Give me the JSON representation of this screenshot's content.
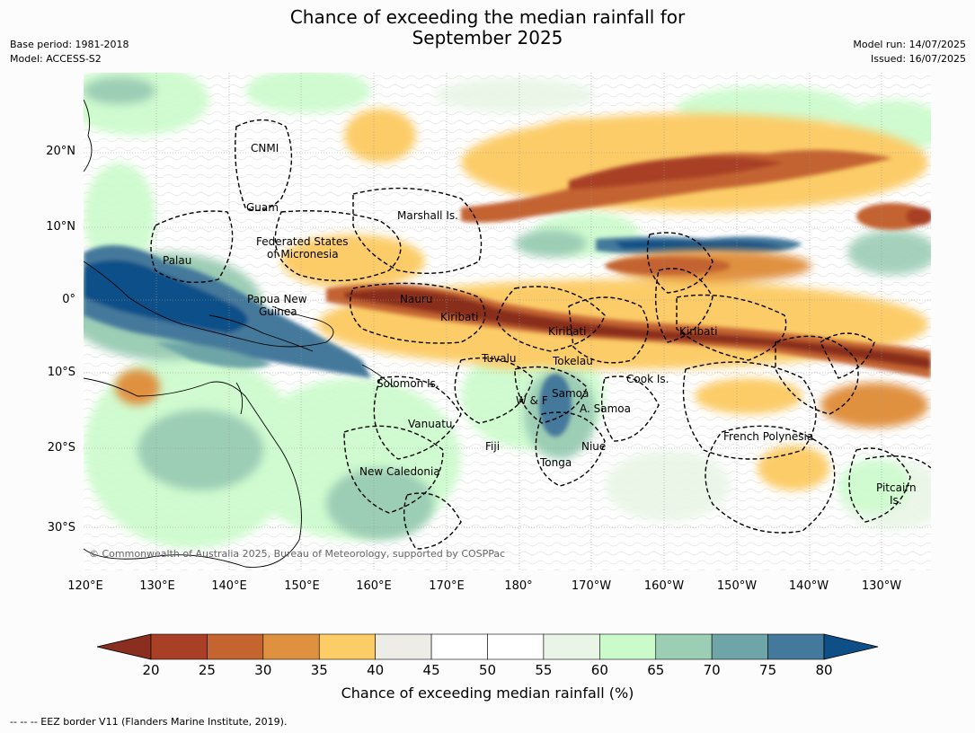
{
  "title_lines": [
    "Chance of exceeding the median rainfall for",
    "September 2025"
  ],
  "meta_left": {
    "line1": "Base period: 1981-2018",
    "line2": "Model: ACCESS-S2"
  },
  "meta_right": {
    "line1": "Model run: 14/07/2025",
    "line2": "Issued: 16/07/2025"
  },
  "lat_labels": [
    "20°N",
    "10°N",
    "0°",
    "10°S",
    "20°S",
    "30°S"
  ],
  "lon_labels": [
    "120°E",
    "130°E",
    "140°E",
    "150°E",
    "160°E",
    "170°E",
    "180°",
    "170°W",
    "160°W",
    "150°W",
    "140°W",
    "130°W"
  ],
  "places": [
    {
      "name": "CNMI"
    },
    {
      "name": "Guam"
    },
    {
      "name": "Marshall Is."
    },
    {
      "name": "Federated States"
    },
    {
      "name": "of Micronesia"
    },
    {
      "name": "Palau"
    },
    {
      "name": "Papua New"
    },
    {
      "name": "Guinea"
    },
    {
      "name": "Nauru"
    },
    {
      "name": "Kiribati"
    },
    {
      "name": "Kiribati"
    },
    {
      "name": "Kiribati"
    },
    {
      "name": "Tuvalu"
    },
    {
      "name": "Tokelau"
    },
    {
      "name": "Cook Is."
    },
    {
      "name": "Solomon Is."
    },
    {
      "name": "Samoa"
    },
    {
      "name": "W & F"
    },
    {
      "name": "A. Samoa"
    },
    {
      "name": "Vanuatu"
    },
    {
      "name": "Fiji"
    },
    {
      "name": "Niue"
    },
    {
      "name": "Tonga"
    },
    {
      "name": "French Polynesia"
    },
    {
      "name": "New Caledonia"
    },
    {
      "name": "Pitcairn"
    },
    {
      "name": "Is."
    }
  ],
  "copyright": "© Commonwealth of Australia 2025, Bureau of Meteorology, supported by COSPPac",
  "colorbar": {
    "ticks": [
      "20",
      "25",
      "30",
      "35",
      "40",
      "45",
      "50",
      "55",
      "60",
      "65",
      "70",
      "75",
      "80"
    ],
    "colors": [
      "#a94026",
      "#c46430",
      "#e0913f",
      "#fccc67",
      "#eeece6",
      "#ffffff",
      "#ffffff",
      "#e9f6e7",
      "#cbfbcb",
      "#9ccdb5",
      "#6ea6a8",
      "#44799b"
    ],
    "under_color": "#8a2f1f",
    "over_color": "#0f4f88",
    "label": "Chance of exceeding median rainfall (%)"
  },
  "footnote": "--  --  -- EEZ border V11 (Flanders Marine Institute, 2019)."
}
